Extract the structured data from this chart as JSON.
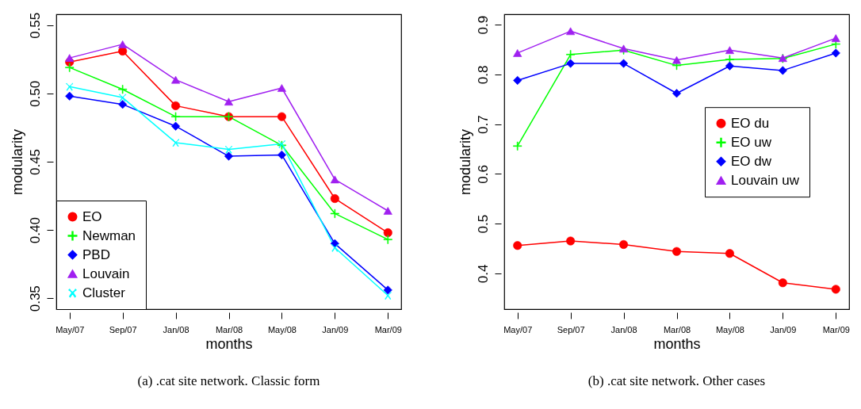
{
  "chart_data": [
    {
      "type": "line",
      "xlabel": "months",
      "ylabel": "modularity",
      "categories": [
        "May/07",
        "Sep/07",
        "Jan/08",
        "Mar/08",
        "May/08",
        "Jan/09",
        "Mar/09"
      ],
      "ylim": [
        0.342,
        0.558
      ],
      "yticks": [
        {
          "value": 0.35,
          "label": "0.35"
        },
        {
          "value": 0.4,
          "label": "0.40"
        },
        {
          "value": 0.45,
          "label": "0.45"
        },
        {
          "value": 0.5,
          "label": "0.50"
        },
        {
          "value": 0.55,
          "label": "0.55"
        }
      ],
      "legend": "bottom left",
      "grid": false,
      "annotations": [
        "(a) .cat site network. Classic form"
      ],
      "series": [
        {
          "name": "EO",
          "color": "#ff0000",
          "marker": "circle",
          "values": [
            0.523,
            0.531,
            0.491,
            0.483,
            0.483,
            0.423,
            0.398
          ]
        },
        {
          "name": "Newman",
          "color": "#00ff00",
          "marker": "cross",
          "values": [
            0.519,
            0.503,
            0.483,
            0.483,
            0.462,
            0.412,
            0.393
          ]
        },
        {
          "name": "PBD",
          "color": "#0000ff",
          "marker": "diamond",
          "values": [
            0.498,
            0.492,
            0.476,
            0.454,
            0.455,
            0.39,
            0.356
          ]
        },
        {
          "name": "Louvain",
          "color": "#a020f0",
          "marker": "triangle",
          "values": [
            0.526,
            0.536,
            0.51,
            0.494,
            0.504,
            0.437,
            0.414
          ]
        },
        {
          "name": "Cluster",
          "color": "#00ffff",
          "marker": "x",
          "values": [
            0.505,
            0.497,
            0.464,
            0.459,
            0.463,
            0.387,
            0.352
          ]
        }
      ]
    },
    {
      "type": "line",
      "xlabel": "months",
      "ylabel": "modularity",
      "categories": [
        "May/07",
        "Sep/07",
        "Jan/08",
        "Mar/08",
        "May/08",
        "Jan/09",
        "Mar/09"
      ],
      "ylim": [
        0.328,
        0.921
      ],
      "yticks": [
        0.4,
        0.5,
        0.6,
        0.7,
        0.8,
        0.9
      ],
      "legend": "right",
      "grid": false,
      "annotations": [
        "(b) .cat site network. Other cases"
      ],
      "series": [
        {
          "name": "EO du",
          "color": "#ff0000",
          "marker": "circle",
          "values": [
            0.456,
            0.465,
            0.458,
            0.444,
            0.44,
            0.381,
            0.368
          ]
        },
        {
          "name": "EO uw",
          "color": "#00ff00",
          "marker": "cross",
          "values": [
            0.656,
            0.84,
            0.849,
            0.818,
            0.83,
            0.832,
            0.861
          ]
        },
        {
          "name": "EO dw",
          "color": "#0000ff",
          "marker": "diamond",
          "values": [
            0.788,
            0.822,
            0.822,
            0.762,
            0.817,
            0.808,
            0.843
          ]
        },
        {
          "name": "Louvain uw",
          "color": "#a020f0",
          "marker": "triangle",
          "values": [
            0.843,
            0.887,
            0.852,
            0.829,
            0.849,
            0.833,
            0.873
          ]
        }
      ]
    }
  ]
}
